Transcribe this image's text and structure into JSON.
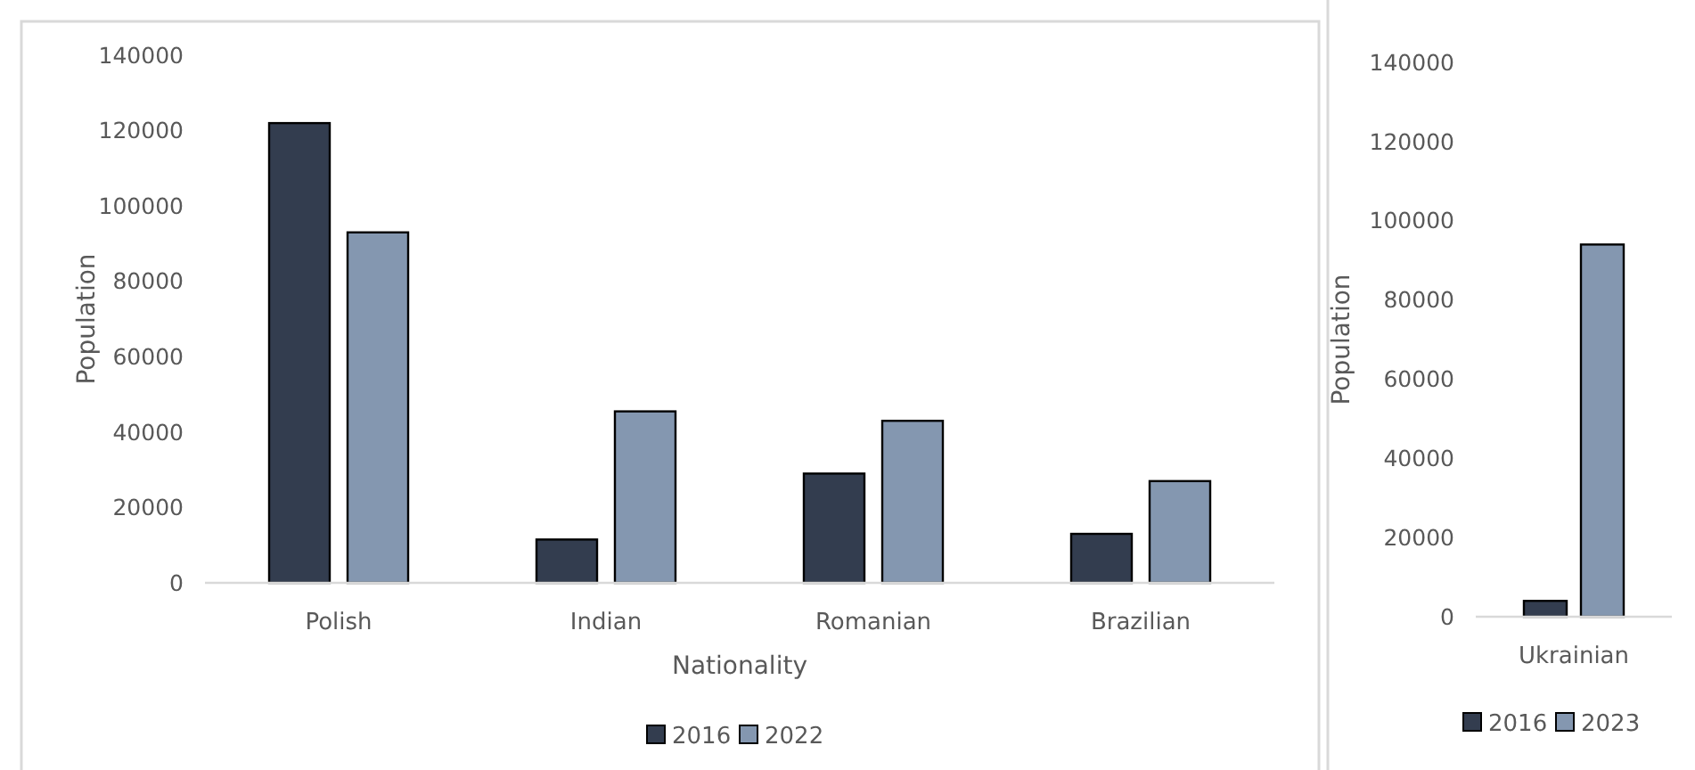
{
  "chart_data": [
    {
      "type": "bar",
      "xlabel": "Nationality",
      "ylabel": "Population",
      "categories": [
        "Polish",
        "Indian",
        "Romanian",
        "Brazilian"
      ],
      "series": [
        {
          "name": "2016",
          "color": "#333d4f",
          "values": [
            122000,
            11500,
            29000,
            13000
          ]
        },
        {
          "name": "2022",
          "color": "#8497b0",
          "values": [
            93000,
            45500,
            43000,
            27000
          ]
        }
      ],
      "ylim": [
        0,
        140000
      ],
      "yticks": [
        0,
        20000,
        40000,
        60000,
        80000,
        100000,
        120000,
        140000
      ],
      "grid": false,
      "legend": "bottom"
    },
    {
      "type": "bar",
      "ylabel": "Population",
      "categories": [
        "Ukrainian"
      ],
      "series": [
        {
          "name": "2016",
          "color": "#333d4f",
          "values": [
            4000
          ]
        },
        {
          "name": "2023",
          "color": "#8497b0",
          "values": [
            94000
          ]
        }
      ],
      "ylim": [
        0,
        140000
      ],
      "yticks": [
        0,
        20000,
        40000,
        60000,
        80000,
        100000,
        120000,
        140000
      ],
      "grid": false,
      "legend": "bottom"
    }
  ]
}
